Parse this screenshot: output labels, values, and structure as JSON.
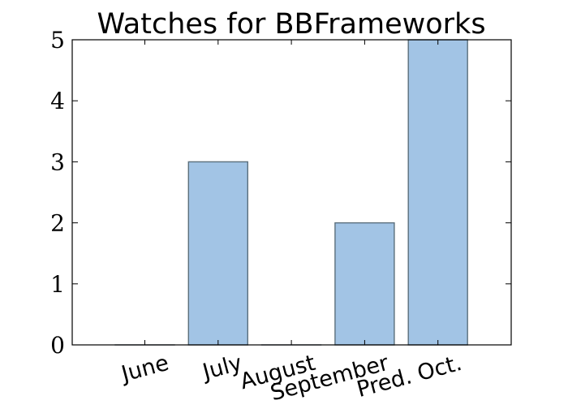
{
  "chart_data": {
    "type": "bar",
    "title": "Watches for BBFrameworks",
    "xlabel": "",
    "ylabel": "",
    "categories": [
      "June",
      "July",
      "August",
      "September",
      "Pred. Oct."
    ],
    "values": [
      0,
      3,
      0,
      2,
      5
    ],
    "ylim": [
      0,
      5
    ],
    "yticks": [
      "0",
      "1",
      "2",
      "3",
      "4",
      "5"
    ],
    "grid": false,
    "legend": "none",
    "bar_color": "#a2c4e5",
    "bar_edge_color": "#5b6f7c"
  }
}
